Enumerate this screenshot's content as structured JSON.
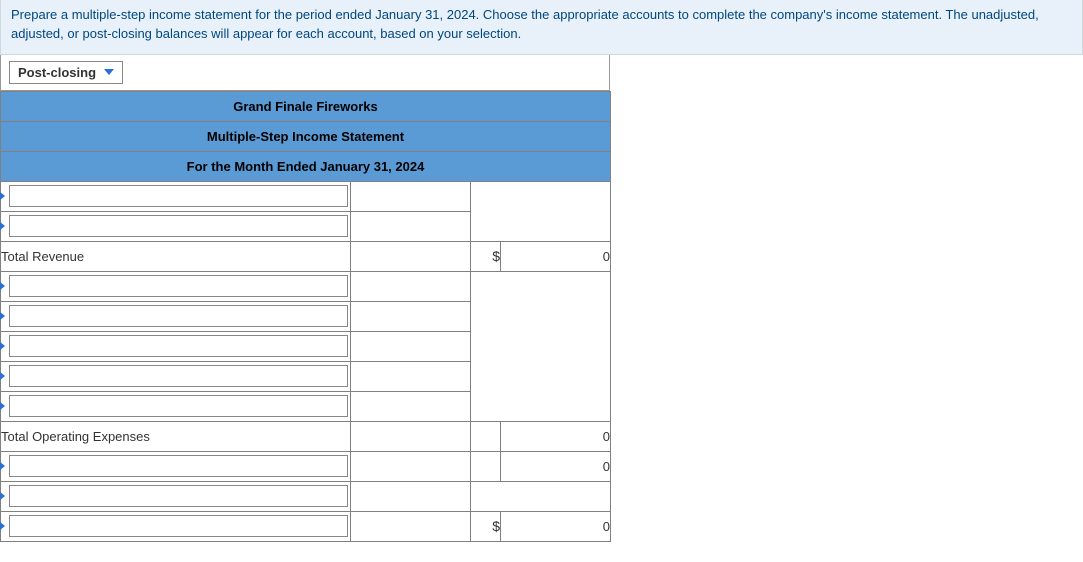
{
  "instructions": "Prepare a multiple-step income statement for the period ended January 31, 2024. Choose the appropriate accounts to complete the company's income statement. The unadjusted, adjusted, or post-closing balances will appear for each account, based on your selection.",
  "balance_selector": {
    "selected": "Post-closing"
  },
  "statement": {
    "company": "Grand Finale Fireworks",
    "title": "Multiple-Step Income Statement",
    "period": "For the Month Ended January 31, 2024",
    "rows": {
      "total_revenue_label": "Total Revenue",
      "total_revenue_currency": "$",
      "total_revenue_value": "0",
      "total_opex_label": "Total Operating Expenses",
      "total_opex_value": "0",
      "row_after_opex_value": "0",
      "final_currency": "$",
      "final_value": "0"
    }
  },
  "colors": {
    "instruction_bg": "#e8f1fa",
    "instruction_text": "#00467f",
    "header_bg": "#5b9bd5",
    "border": "#808080",
    "accent": "#2a6fd6"
  }
}
